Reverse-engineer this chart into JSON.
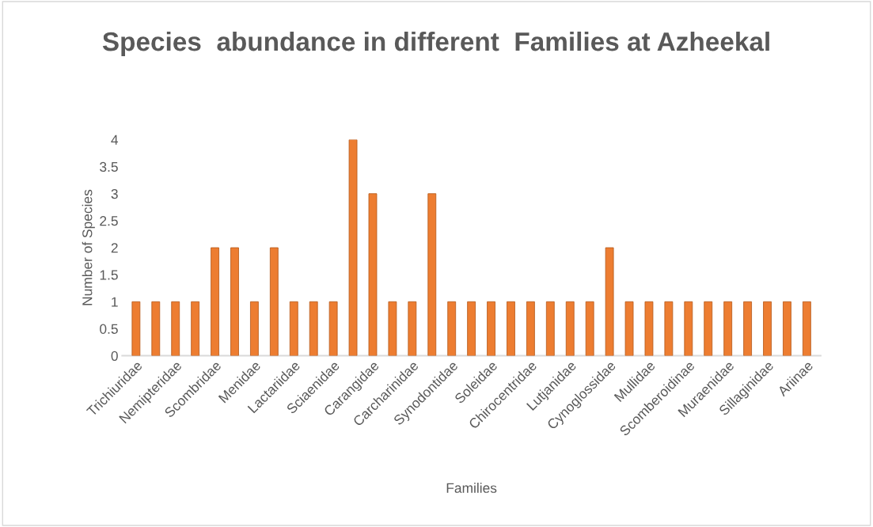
{
  "chart_data": {
    "type": "bar",
    "title": "Species  abundance in different  Families at Azheekal",
    "xlabel": "Families",
    "ylabel": "Number of Species",
    "categories": [
      "Trichiuridae",
      null,
      "Nemipteridae",
      null,
      "Scombridae",
      null,
      "Menidae",
      null,
      "Lactariidae",
      null,
      "Sciaenidae",
      null,
      "Carangidae",
      null,
      "Carcharinidae",
      null,
      "Synodontidae",
      null,
      "Soleidae",
      null,
      "Chirocentridae",
      null,
      "Lutjanidae",
      null,
      "Cynoglossidae",
      null,
      "Mullidae",
      null,
      "Scomberoidinae",
      null,
      "Muraenidae",
      null,
      "Sillaginidae",
      null,
      "Ariinae"
    ],
    "values": [
      1,
      1,
      1,
      1,
      2,
      2,
      1,
      2,
      1,
      1,
      1,
      4,
      3,
      1,
      1,
      3,
      1,
      1,
      1,
      1,
      1,
      1,
      1,
      1,
      2,
      1,
      1,
      1,
      1,
      1,
      1,
      1,
      1,
      1,
      1
    ],
    "color": "#ed7d31",
    "ylim": [
      0,
      4
    ],
    "yticks": [
      0,
      0.5,
      1,
      1.5,
      2,
      2.5,
      3,
      3.5,
      4
    ],
    "grid": false,
    "legend": false
  }
}
